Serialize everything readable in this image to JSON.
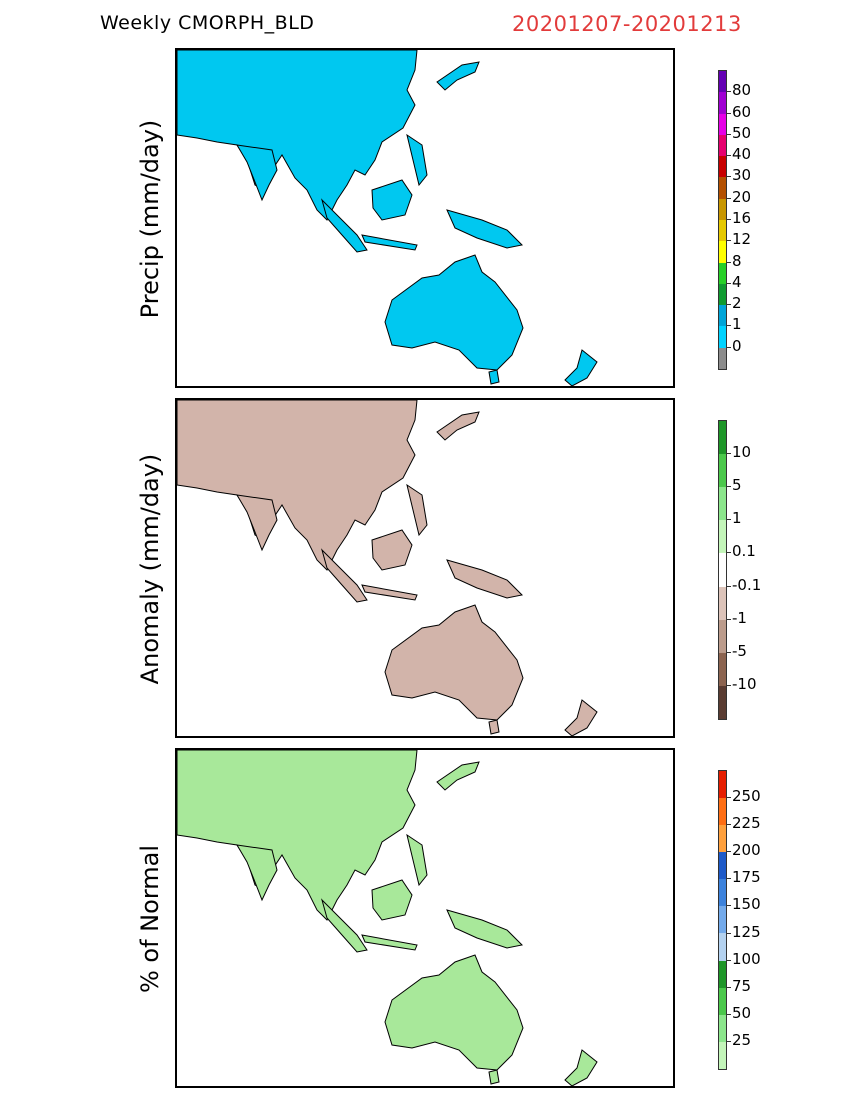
{
  "header": {
    "product_title": "Weekly  CMORPH_BLD",
    "date_range": "20201207-20201213",
    "date_color": "#e23b3b"
  },
  "panels": [
    {
      "id": "precip",
      "ylabel": "Precip  (mm/day)",
      "colorbar": {
        "colors": [
          "#8c8c8c",
          "#00d2ff",
          "#00a5d8",
          "#0f9b30",
          "#27d027",
          "#ffff00",
          "#e6c800",
          "#c89600",
          "#b45000",
          "#c80000",
          "#e6006e",
          "#e600e6",
          "#a000d2",
          "#6400b4"
        ],
        "labels": [
          "0",
          "1",
          "2",
          "4",
          "8",
          "12",
          "16",
          "20",
          "30",
          "40",
          "50",
          "60",
          "80"
        ]
      }
    },
    {
      "id": "anomaly",
      "ylabel": "Anomaly  (mm/day)",
      "colorbar": {
        "colors": [
          "#5a3c32",
          "#8c6450",
          "#bc9c8c",
          "#dcc3b9",
          "#ffffff",
          "#c3f5b9",
          "#8ce68c",
          "#4bc84b",
          "#1e9628"
        ],
        "labels": [
          "-10",
          "-5",
          "-1",
          "-0.1",
          "0.1",
          "1",
          "5",
          "10"
        ]
      }
    },
    {
      "id": "percent",
      "ylabel": "% of Normal",
      "colorbar": {
        "colors": [
          "#c3f5b9",
          "#8ce68c",
          "#4bc84b",
          "#1e9628",
          "#b4d2f0",
          "#73aaeb",
          "#3c82dc",
          "#1e5ac8",
          "#ffa03c",
          "#ff6e14",
          "#e61e00"
        ],
        "labels": [
          "25",
          "50",
          "75",
          "100",
          "125",
          "150",
          "175",
          "200",
          "225",
          "250"
        ]
      }
    }
  ]
}
